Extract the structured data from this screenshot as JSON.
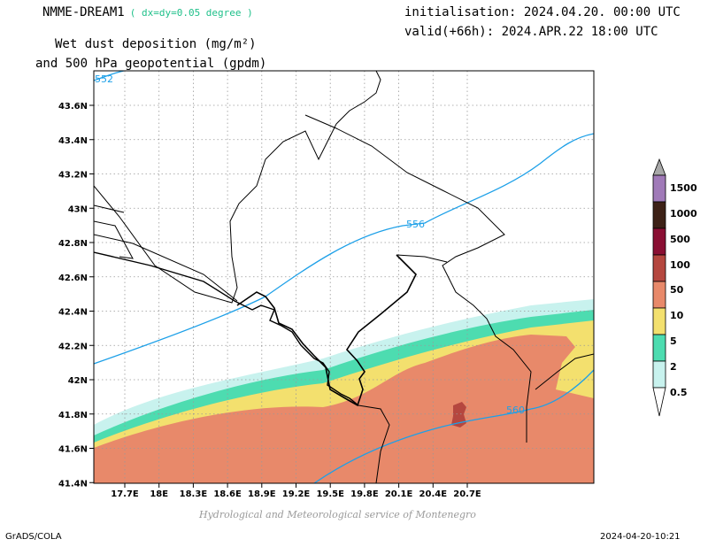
{
  "header": {
    "model": "NMME-DREAM1",
    "resolution": "( dx=dy=0.05 degree )",
    "field_line1": "Wet dust deposition (mg/m²)",
    "field_line2": "and 500 hPa geopotential (gpdm)",
    "init": "initialisation: 2024.04.20. 00:00 UTC",
    "valid": "valid(+66h): 2024.APR.22 18:00 UTC"
  },
  "footer": {
    "agency": "Hydrological and Meteorological service of Montenegro",
    "software": "GrADS/COLA",
    "timestamp": "2024-04-20-10:21"
  },
  "map": {
    "lon_ticks": [
      "17.7E",
      "18E",
      "18.3E",
      "18.6E",
      "18.9E",
      "19.2E",
      "19.5E",
      "19.8E",
      "20.1E",
      "20.4E",
      "20.7E"
    ],
    "lat_ticks": [
      "43.6N",
      "43.4N",
      "43.2N",
      "43N",
      "42.8N",
      "42.6N",
      "42.4N",
      "42.2N",
      "42N",
      "41.8N",
      "41.6N",
      "41.4N"
    ],
    "contour_labels": [
      "552",
      "556",
      "560"
    ],
    "colors": {
      "level_0_5": "#c8f2ee",
      "level_2": "#4ddcb0",
      "level_5": "#f3e06e",
      "level_10": "#e8896a",
      "level_50": "#b5473f",
      "level_100": "#8a0f33",
      "level_500": "#3d2116",
      "level_1000": "#a07ab8",
      "level_1500": "#a8a8a8",
      "contour": "#1da0e8",
      "contour_label": "#1da0e8"
    }
  },
  "legend": {
    "levels": [
      "1500",
      "1000",
      "500",
      "100",
      "50",
      "10",
      "5",
      "2",
      "0.5"
    ]
  }
}
